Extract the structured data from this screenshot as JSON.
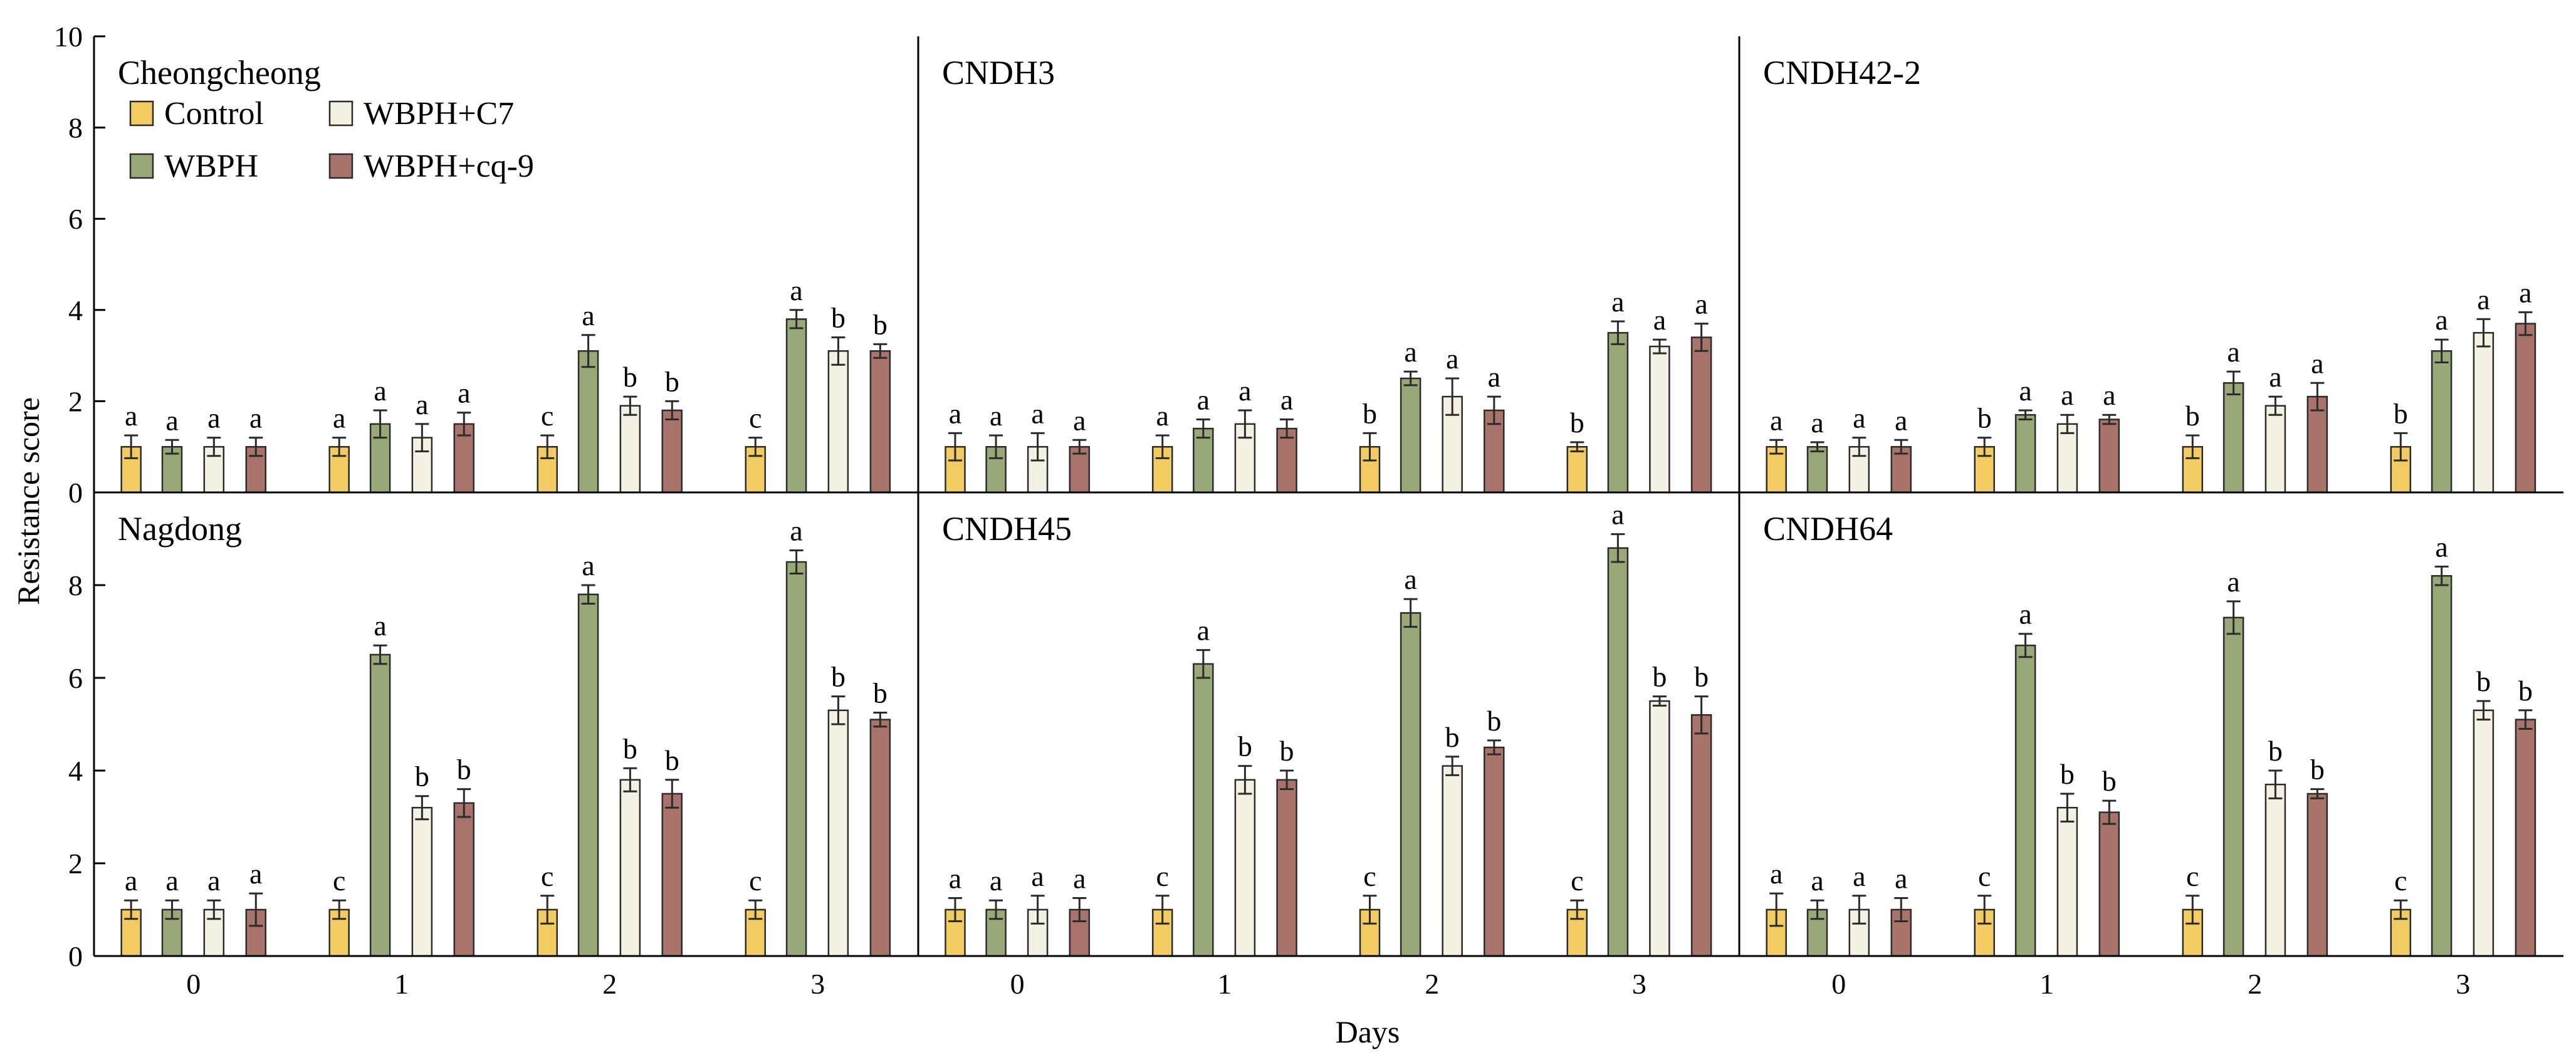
{
  "chart_data": {
    "type": "bar",
    "ylabel": "Resistance score",
    "xlabel": "Days",
    "ylim": [
      0,
      10
    ],
    "yticks": [
      "0",
      "2",
      "4",
      "6",
      "8",
      "10"
    ],
    "categories": [
      "0",
      "1",
      "2",
      "3"
    ],
    "legend": [
      {
        "name": "Control",
        "color": "#F2CC63"
      },
      {
        "name": "WBPH",
        "color": "#98A878"
      },
      {
        "name": "WBPH+C7",
        "color": "#F4F0E2"
      },
      {
        "name": "WBPH+cq-9",
        "color": "#A8736A"
      }
    ],
    "panels": [
      {
        "title": "Cheongcheong",
        "values": [
          [
            1.0,
            1.0,
            1.0,
            1.0
          ],
          [
            1.0,
            1.5,
            1.2,
            1.5
          ],
          [
            1.0,
            3.1,
            1.9,
            1.8
          ],
          [
            1.0,
            3.8,
            3.1,
            3.1
          ]
        ],
        "errors": [
          [
            0.25,
            0.15,
            0.2,
            0.2
          ],
          [
            0.2,
            0.3,
            0.3,
            0.25
          ],
          [
            0.25,
            0.35,
            0.2,
            0.2
          ],
          [
            0.2,
            0.2,
            0.3,
            0.15
          ]
        ],
        "letters": [
          [
            "a",
            "a",
            "a",
            "a"
          ],
          [
            "a",
            "a",
            "a",
            "a"
          ],
          [
            "c",
            "a",
            "b",
            "b"
          ],
          [
            "c",
            "a",
            "b",
            "b"
          ]
        ]
      },
      {
        "title": "CNDH3",
        "values": [
          [
            1.0,
            1.0,
            1.0,
            1.0
          ],
          [
            1.0,
            1.4,
            1.5,
            1.4
          ],
          [
            1.0,
            2.5,
            2.1,
            1.8
          ],
          [
            1.0,
            3.5,
            3.2,
            3.4
          ]
        ],
        "errors": [
          [
            0.3,
            0.25,
            0.3,
            0.15
          ],
          [
            0.25,
            0.2,
            0.3,
            0.2
          ],
          [
            0.3,
            0.15,
            0.4,
            0.3
          ],
          [
            0.1,
            0.25,
            0.15,
            0.3
          ]
        ],
        "letters": [
          [
            "a",
            "a",
            "a",
            "a"
          ],
          [
            "a",
            "a",
            "a",
            "a"
          ],
          [
            "b",
            "a",
            "a",
            "a"
          ],
          [
            "b",
            "a",
            "a",
            "a"
          ]
        ]
      },
      {
        "title": "CNDH42-2",
        "values": [
          [
            1.0,
            1.0,
            1.0,
            1.0
          ],
          [
            1.0,
            1.7,
            1.5,
            1.6
          ],
          [
            1.0,
            2.4,
            1.9,
            2.1
          ],
          [
            1.0,
            3.1,
            3.5,
            3.7
          ]
        ],
        "errors": [
          [
            0.15,
            0.1,
            0.2,
            0.15
          ],
          [
            0.2,
            0.1,
            0.2,
            0.1
          ],
          [
            0.25,
            0.25,
            0.2,
            0.3
          ],
          [
            0.3,
            0.25,
            0.3,
            0.25
          ]
        ],
        "letters": [
          [
            "a",
            "a",
            "a",
            "a"
          ],
          [
            "b",
            "a",
            "a",
            "a"
          ],
          [
            "b",
            "a",
            "a",
            "a"
          ],
          [
            "b",
            "a",
            "a",
            "a"
          ]
        ]
      },
      {
        "title": "Nagdong",
        "values": [
          [
            1.0,
            1.0,
            1.0,
            1.0
          ],
          [
            1.0,
            6.5,
            3.2,
            3.3
          ],
          [
            1.0,
            7.8,
            3.8,
            3.5
          ],
          [
            1.0,
            8.5,
            5.3,
            5.1
          ]
        ],
        "errors": [
          [
            0.2,
            0.2,
            0.2,
            0.35
          ],
          [
            0.2,
            0.2,
            0.25,
            0.3
          ],
          [
            0.3,
            0.2,
            0.25,
            0.3
          ],
          [
            0.2,
            0.25,
            0.3,
            0.15
          ]
        ],
        "letters": [
          [
            "a",
            "a",
            "a",
            "a"
          ],
          [
            "c",
            "a",
            "b",
            "b"
          ],
          [
            "c",
            "a",
            "b",
            "b"
          ],
          [
            "c",
            "a",
            "b",
            "b"
          ]
        ]
      },
      {
        "title": "CNDH45",
        "values": [
          [
            1.0,
            1.0,
            1.0,
            1.0
          ],
          [
            1.0,
            6.3,
            3.8,
            3.8
          ],
          [
            1.0,
            7.4,
            4.1,
            4.5
          ],
          [
            1.0,
            8.8,
            5.5,
            5.2
          ]
        ],
        "errors": [
          [
            0.25,
            0.2,
            0.3,
            0.25
          ],
          [
            0.3,
            0.3,
            0.3,
            0.2
          ],
          [
            0.3,
            0.3,
            0.2,
            0.15
          ],
          [
            0.2,
            0.3,
            0.1,
            0.4
          ]
        ],
        "letters": [
          [
            "a",
            "a",
            "a",
            "a"
          ],
          [
            "c",
            "a",
            "b",
            "b"
          ],
          [
            "c",
            "a",
            "b",
            "b"
          ],
          [
            "c",
            "a",
            "b",
            "b"
          ]
        ]
      },
      {
        "title": "CNDH64",
        "values": [
          [
            1.0,
            1.0,
            1.0,
            1.0
          ],
          [
            1.0,
            6.7,
            3.2,
            3.1
          ],
          [
            1.0,
            7.3,
            3.7,
            3.5
          ],
          [
            1.0,
            8.2,
            5.3,
            5.1
          ]
        ],
        "errors": [
          [
            0.35,
            0.2,
            0.3,
            0.25
          ],
          [
            0.3,
            0.25,
            0.3,
            0.25
          ],
          [
            0.3,
            0.35,
            0.3,
            0.1
          ],
          [
            0.2,
            0.2,
            0.2,
            0.2
          ]
        ],
        "letters": [
          [
            "a",
            "a",
            "a",
            "a"
          ],
          [
            "c",
            "a",
            "b",
            "b"
          ],
          [
            "c",
            "a",
            "b",
            "b"
          ],
          [
            "c",
            "a",
            "b",
            "b"
          ]
        ]
      }
    ]
  }
}
